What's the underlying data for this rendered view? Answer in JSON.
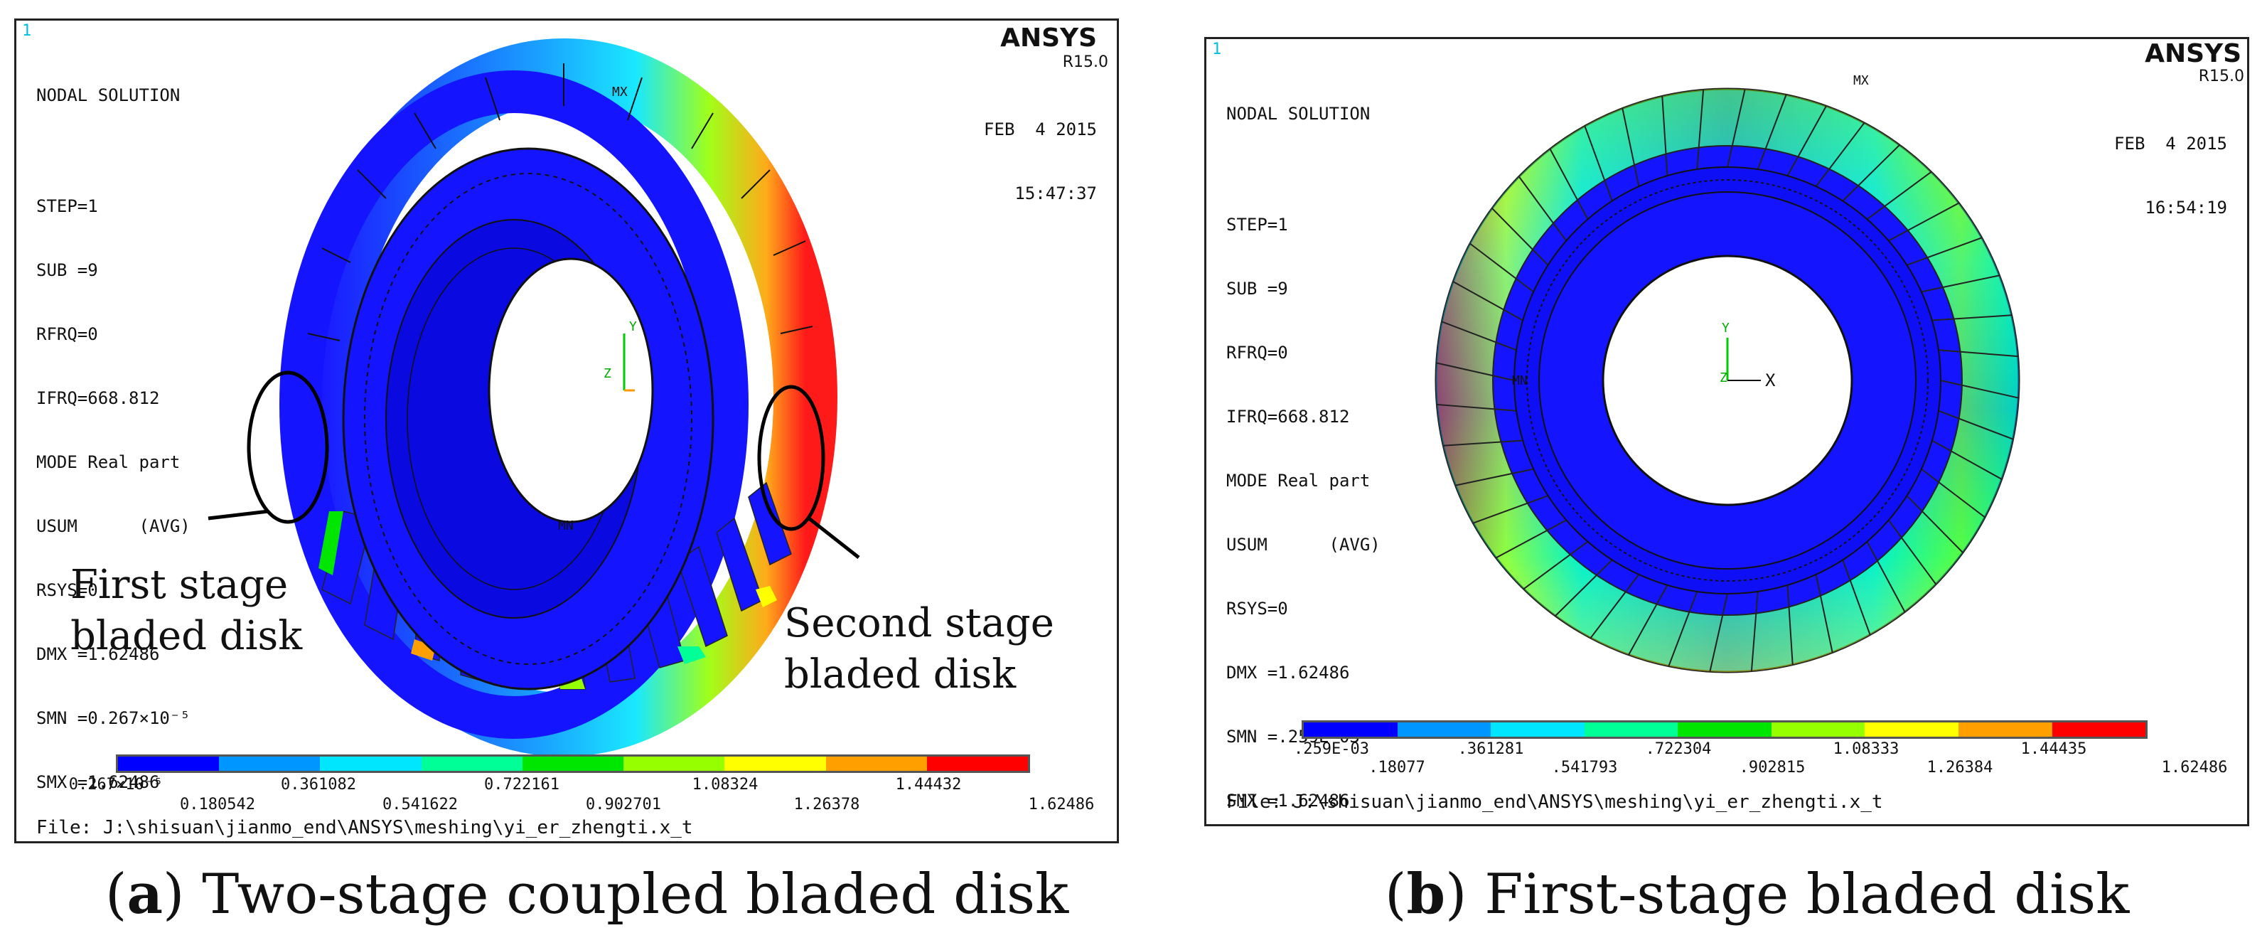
{
  "panel_a": {
    "window_number": "1",
    "info_lines": [
      "NODAL SOLUTION",
      "",
      "STEP=1",
      "SUB =9",
      "RFRQ=0",
      "IFRQ=668.812",
      "MODE Real part",
      "USUM      (AVG)",
      "RSYS=0",
      "DMX =1.62486",
      "SMN =0.267×10⁻⁵",
      "SMX =1.62486"
    ],
    "brand": "ANSYS",
    "release": "R15.0",
    "date": "FEB  4 2015",
    "time": "15:47:37",
    "markers": {
      "mx": "MX",
      "mn": "MN",
      "axis_y": "Y",
      "axis_z": "Z"
    },
    "legend_upper": [
      "0.267×10⁻⁵",
      "0.361082",
      "0.722161",
      "1.08324",
      "1.44432"
    ],
    "legend_lower": [
      "0.180542",
      "0.541622",
      "0.902701",
      "1.26378",
      "1.62486"
    ],
    "file": "File: J:\\shisuan\\jianmo_end\\ANSYS\\meshing\\yi_er_zhengti.x_t",
    "annotation_left": [
      "First stage",
      "bladed disk"
    ],
    "annotation_right": [
      "Second stage",
      "bladed disk"
    ]
  },
  "panel_b": {
    "window_number": "1",
    "info_lines": [
      "NODAL SOLUTION",
      "",
      "STEP=1",
      "SUB =9",
      "RFRQ=0",
      "IFRQ=668.812",
      "MODE Real part",
      "USUM      (AVG)",
      "RSYS=0",
      "DMX =1.62486",
      "SMN =.259E-03",
      "SMX =1.62486"
    ],
    "brand": "ANSYS",
    "release": "R15.0",
    "date": "FEB  4 2015",
    "time": "16:54:19",
    "markers": {
      "mx": "MX",
      "mn": "MN",
      "axis_y": "Y",
      "axis_z": "Z",
      "axis_x": "X"
    },
    "legend_upper": [
      ".259E-03",
      ".361281",
      ".722304",
      "1.08333",
      "1.44435"
    ],
    "legend_lower": [
      ".18077",
      ".541793",
      ".902815",
      "1.26384",
      "1.62486"
    ],
    "file": "File: J:\\shisuan\\jianmo_end\\ANSYS\\meshing\\yi_er_zhengti.x_t"
  },
  "captions": {
    "a_label": "a",
    "a_text": "Two-stage coupled bladed disk",
    "b_label": "b",
    "b_text": "First-stage bladed disk"
  },
  "colors": {
    "legend": [
      "#0000ff",
      "#0096ff",
      "#00e6ff",
      "#00ff96",
      "#00e600",
      "#96ff00",
      "#ffff00",
      "#ffa000",
      "#ff0000"
    ]
  }
}
